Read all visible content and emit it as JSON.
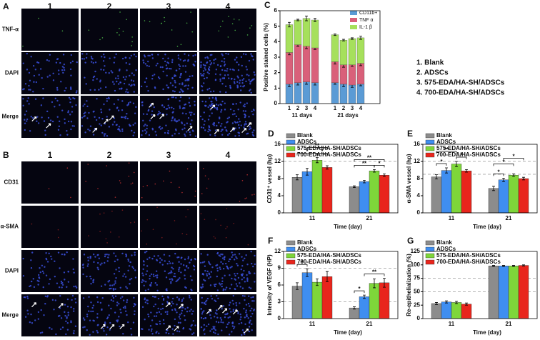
{
  "figure_a": {
    "label": "A",
    "columns": [
      "1",
      "2",
      "3",
      "4"
    ],
    "rows": [
      "TNF-α",
      "DAPI",
      "Merge"
    ]
  },
  "figure_b": {
    "label": "B",
    "columns": [
      "1",
      "2",
      "3",
      "4"
    ],
    "rows": [
      "CD31",
      "α-SMA",
      "DAPI",
      "Merge"
    ]
  },
  "key": [
    "1. Blank",
    "2. ADSCs",
    "3. 575-EDA/HA-SH/ADSCs",
    "4. 700-EDA/HA-SH/ADSCs"
  ],
  "chart_data": [
    {
      "type": "stacked_bar",
      "panel_label": "C",
      "ylabel": "Positive stained cells (%)",
      "categories": [
        "1",
        "2",
        "3",
        "4",
        "1",
        "2",
        "3",
        "4"
      ],
      "group_labels": [
        "11 days",
        "21 days"
      ],
      "ylim": [
        0,
        6
      ],
      "yticks": [
        0,
        1,
        2,
        3,
        4,
        5,
        6
      ],
      "legend": "upper right",
      "series": [
        {
          "name": "CD11b+",
          "color": "#5b9bd5",
          "values": [
            1.25,
            1.35,
            1.4,
            1.35,
            1.35,
            1.25,
            1.2,
            1.25
          ],
          "errors": [
            0.15,
            0.15,
            0.15,
            0.15,
            0.1,
            0.15,
            0.15,
            0.1
          ]
        },
        {
          "name": "TNF α",
          "color": "#d9607a",
          "values": [
            2.05,
            2.45,
            2.3,
            2.25,
            1.35,
            1.25,
            1.3,
            1.35
          ],
          "errors": [
            0.15,
            0.1,
            0.15,
            0.1,
            0.15,
            0.15,
            0.1,
            0.15
          ]
        },
        {
          "name": "IL-1 β",
          "color": "#a6e05c",
          "values": [
            1.8,
            1.6,
            1.8,
            1.8,
            1.75,
            1.6,
            1.7,
            1.65
          ],
          "errors": [
            0.15,
            0.05,
            0.15,
            0.1,
            0.05,
            0.05,
            0.05,
            0.1
          ]
        }
      ]
    },
    {
      "type": "bar",
      "panel_label": "D",
      "ylabel": "CD31⁺ vessel (hp)",
      "xlabel": "Time (day)",
      "categories": [
        "11",
        "21"
      ],
      "ylim": [
        0,
        16
      ],
      "yticks": [
        0,
        4,
        8,
        12,
        16
      ],
      "reference_lines": [
        12
      ],
      "legend": "upper left",
      "annotations": [
        "*",
        "**",
        "*",
        "**",
        "**",
        "*"
      ],
      "series": [
        {
          "name": "Blank",
          "color": "#8c8c8c",
          "values": [
            8.3,
            6.1
          ],
          "errors": [
            0.6,
            0.2
          ]
        },
        {
          "name": "ADSCs",
          "color": "#3f8ef0",
          "values": [
            9.6,
            7.3
          ],
          "errors": [
            0.8,
            0.3
          ]
        },
        {
          "name": "575-EDA/HA-SH/ADSCs",
          "color": "#7ed63a",
          "values": [
            12.3,
            9.8
          ],
          "errors": [
            0.6,
            0.3
          ]
        },
        {
          "name": "700-EDA/HA-SH/ADSCs",
          "color": "#e8251c",
          "values": [
            10.6,
            8.8
          ],
          "errors": [
            0.4,
            0.3
          ]
        }
      ]
    },
    {
      "type": "bar",
      "panel_label": "E",
      "ylabel": "α-SMA vessel (hp)",
      "xlabel": "Time (day)",
      "categories": [
        "11",
        "21"
      ],
      "ylim": [
        0,
        16
      ],
      "yticks": [
        0,
        4,
        8,
        12,
        16
      ],
      "reference_lines": [
        12,
        9
      ],
      "legend": "upper left",
      "annotations": [
        "*",
        "**",
        "*",
        "*",
        "*",
        "*"
      ],
      "series": [
        {
          "name": "Blank",
          "color": "#8c8c8c",
          "values": [
            8.4,
            5.7
          ],
          "errors": [
            0.5,
            0.5
          ]
        },
        {
          "name": "ADSCs",
          "color": "#3f8ef0",
          "values": [
            9.9,
            7.7
          ],
          "errors": [
            0.6,
            0.4
          ]
        },
        {
          "name": "575-EDA/HA-SH/ADSCs",
          "color": "#7ed63a",
          "values": [
            11.4,
            8.8
          ],
          "errors": [
            0.6,
            0.3
          ]
        },
        {
          "name": "700-EDA/HA-SH/ADSCs",
          "color": "#e8251c",
          "values": [
            9.8,
            8.0
          ],
          "errors": [
            0.3,
            0.3
          ]
        }
      ]
    },
    {
      "type": "bar",
      "panel_label": "F",
      "ylabel": "Intensity of VEGF (HP)",
      "xlabel": "Time (day)",
      "categories": [
        "11",
        "21"
      ],
      "ylim": [
        0,
        12
      ],
      "yticks": [
        0,
        3,
        6,
        9,
        12
      ],
      "reference_lines": [
        9,
        3
      ],
      "legend": "upper left",
      "annotations": [
        "*",
        "*",
        "**"
      ],
      "series": [
        {
          "name": "Blank",
          "color": "#8c8c8c",
          "values": [
            5.8,
            1.9
          ],
          "errors": [
            0.6,
            0.2
          ]
        },
        {
          "name": "ADSCs",
          "color": "#3f8ef0",
          "values": [
            8.2,
            3.9
          ],
          "errors": [
            0.7,
            0.3
          ]
        },
        {
          "name": "575-EDA/HA-SH/ADSCs",
          "color": "#7ed63a",
          "values": [
            6.5,
            6.3
          ],
          "errors": [
            0.6,
            0.8
          ]
        },
        {
          "name": "700-EDA/HA-SH/ADSCs",
          "color": "#e8251c",
          "values": [
            7.5,
            6.4
          ],
          "errors": [
            0.9,
            0.8
          ]
        }
      ]
    },
    {
      "type": "bar",
      "panel_label": "G",
      "ylabel": "Re-epithelialization (%)",
      "xlabel": "Time (day)",
      "categories": [
        "11",
        "21"
      ],
      "ylim": [
        0,
        125
      ],
      "yticks": [
        0,
        25,
        50,
        75,
        100,
        125
      ],
      "reference_lines": [
        50,
        75
      ],
      "legend": "upper left",
      "series": [
        {
          "name": "Blank",
          "color": "#8c8c8c",
          "values": [
            28,
            98
          ],
          "errors": [
            2,
            1
          ]
        },
        {
          "name": "ADSCs",
          "color": "#3f8ef0",
          "values": [
            31,
            98
          ],
          "errors": [
            2,
            1
          ]
        },
        {
          "name": "575-EDA/HA-SH/ADSCs",
          "color": "#7ed63a",
          "values": [
            30,
            98
          ],
          "errors": [
            2,
            1
          ]
        },
        {
          "name": "700-EDA/HA-SH/ADSCs",
          "color": "#e8251c",
          "values": [
            27,
            99
          ],
          "errors": [
            2,
            1
          ]
        }
      ]
    }
  ]
}
